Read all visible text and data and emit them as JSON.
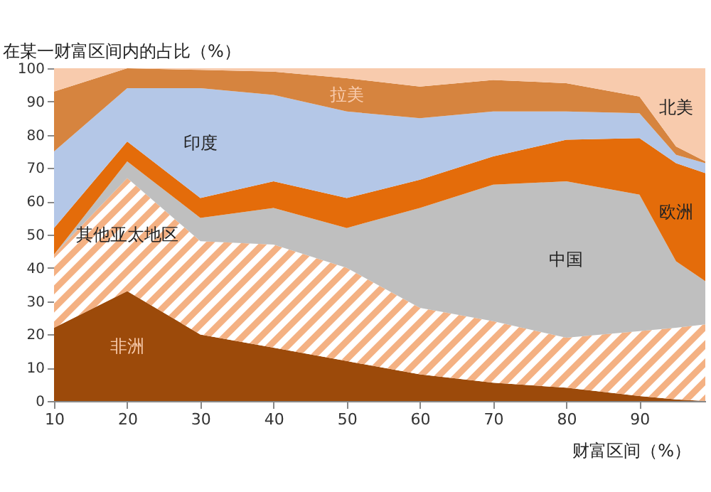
{
  "chart_data": {
    "type": "area",
    "stacked": true,
    "ylabel": "在某一财富区间内的占比（%）",
    "xlabel": "财富区间（%）",
    "x": [
      10,
      20,
      30,
      40,
      50,
      60,
      70,
      80,
      90,
      95,
      99
    ],
    "xlim": [
      10,
      99
    ],
    "xticks": [
      10,
      20,
      30,
      40,
      50,
      60,
      70,
      80,
      90
    ],
    "ylim": [
      0,
      100
    ],
    "yticks": [
      0,
      10,
      20,
      30,
      40,
      50,
      60,
      70,
      80,
      90,
      100
    ],
    "grid": false,
    "legend": false,
    "series": [
      {
        "name": "非洲",
        "color": "#9c4a0a",
        "values": [
          22,
          33,
          20,
          16,
          12,
          8,
          5.5,
          4,
          1.5,
          0.5,
          0
        ]
      },
      {
        "name": "其他亚太地区",
        "color": "#f4b183",
        "values": [
          22,
          34,
          28,
          31,
          28,
          20,
          18.5,
          15,
          19.5,
          21.5,
          23
        ]
      },
      {
        "name": "中国",
        "color": "#bfbfbf",
        "values": [
          0,
          5,
          7,
          11,
          12,
          30,
          41,
          47,
          41,
          20,
          13
        ]
      },
      {
        "name": "欧洲",
        "color": "#e46c0a",
        "values": [
          8,
          6,
          6,
          8,
          9,
          8.5,
          8.5,
          12.5,
          17,
          29.5,
          32.5
        ]
      },
      {
        "name": "印度",
        "color": "#b4c7e7",
        "values": [
          23,
          16,
          33,
          26,
          26,
          18.5,
          13.5,
          8.5,
          7.5,
          2.5,
          3
        ]
      },
      {
        "name": "拉美",
        "color": "#d6843f",
        "values": [
          18,
          6,
          5.5,
          7,
          10,
          9.5,
          9.5,
          8.5,
          5,
          2.5,
          0.5
        ]
      },
      {
        "name": "北美",
        "color": "#f8cbad",
        "values": [
          7,
          0,
          0.5,
          1,
          3,
          5.5,
          3.5,
          4.5,
          8.5,
          23.5,
          28
        ]
      }
    ]
  }
}
